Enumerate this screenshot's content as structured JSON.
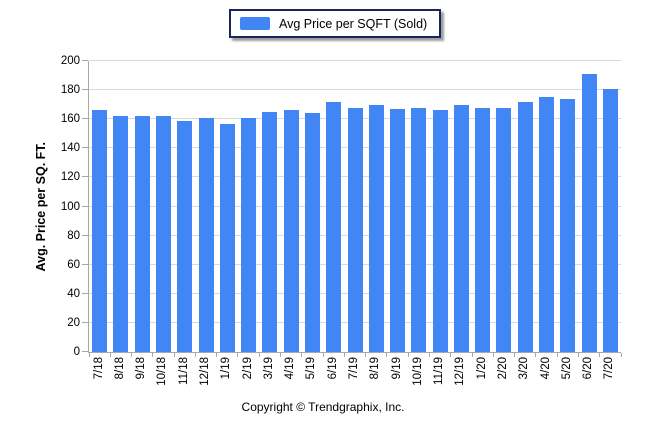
{
  "legend": {
    "label": "Avg Price per SQFT (Sold)"
  },
  "footer": {
    "copyright": "Copyright © Trendgraphix, Inc."
  },
  "colors": {
    "bar": "#4285f4",
    "legend_border": "#1b2559",
    "gridline": "#d9d9d9",
    "axis": "#a8a8a8"
  },
  "chart_data": {
    "type": "bar",
    "title": "Avg Price per SQFT (Sold)",
    "xlabel": "",
    "ylabel": "Avg. Price per SQ. FT.",
    "ylim": [
      0,
      200
    ],
    "ytick_step": 20,
    "grid": true,
    "legend_position": "top-center",
    "categories": [
      "7/18",
      "8/18",
      "9/18",
      "10/18",
      "11/18",
      "12/18",
      "1/19",
      "2/19",
      "3/19",
      "4/19",
      "5/19",
      "6/19",
      "7/19",
      "8/19",
      "9/19",
      "10/19",
      "11/19",
      "12/19",
      "1/20",
      "2/20",
      "3/20",
      "4/20",
      "5/20",
      "6/20",
      "7/20"
    ],
    "values": [
      166,
      162,
      162,
      162,
      159,
      161,
      157,
      161,
      165,
      166,
      164,
      172,
      168,
      170,
      167,
      168,
      166,
      170,
      168,
      168,
      172,
      175,
      174,
      191,
      181
    ]
  }
}
